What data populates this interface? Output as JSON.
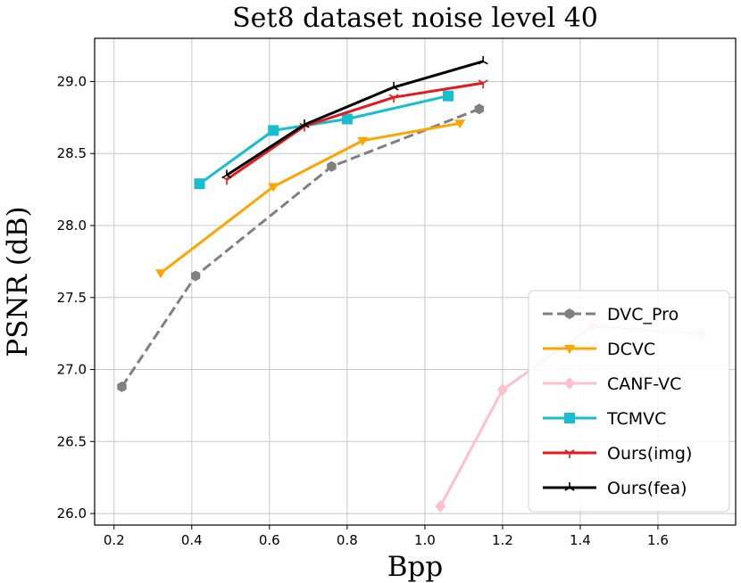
{
  "chart_data": {
    "type": "line",
    "title": "Set8 dataset noise level 40",
    "xlabel": "Bpp",
    "ylabel": "PSNR (dB)",
    "xlim": [
      0.15,
      1.8
    ],
    "ylim": [
      25.92,
      29.3
    ],
    "xticks": [
      "0.2",
      "0.4",
      "0.6",
      "0.8",
      "1.0",
      "1.2",
      "1.4",
      "1.6"
    ],
    "yticks": [
      "26.0",
      "26.5",
      "27.0",
      "27.5",
      "28.0",
      "28.5",
      "29.0"
    ],
    "grid": true,
    "legend_position": "lower-right",
    "series": [
      {
        "name": "DVC_Pro",
        "color": "#808080",
        "marker": "hexagon",
        "dashed": true,
        "x": [
          0.22,
          0.41,
          0.76,
          1.14
        ],
        "y": [
          26.88,
          27.65,
          28.41,
          28.81
        ]
      },
      {
        "name": "DCVC",
        "color": "#ffa500",
        "marker": "triangle-down",
        "dashed": false,
        "x": [
          0.32,
          0.61,
          0.84,
          1.09
        ],
        "y": [
          27.67,
          28.27,
          28.59,
          28.71
        ]
      },
      {
        "name": "CANF-VC",
        "color": "#ffc0cb",
        "marker": "diamond",
        "dashed": false,
        "x": [
          1.04,
          1.2,
          1.43,
          1.71
        ],
        "y": [
          26.05,
          26.86,
          27.3,
          27.25
        ]
      },
      {
        "name": "TCMVC",
        "color": "#17becf",
        "marker": "square",
        "dashed": false,
        "x": [
          0.42,
          0.61,
          0.8,
          1.06
        ],
        "y": [
          28.29,
          28.66,
          28.74,
          28.9
        ]
      },
      {
        "name": "Ours(img)",
        "color": "#e31a1c",
        "marker": "tri-down",
        "dashed": false,
        "x": [
          0.49,
          0.69,
          0.92,
          1.15
        ],
        "y": [
          28.32,
          28.69,
          28.89,
          28.99
        ]
      },
      {
        "name": "Ours(fea)",
        "color": "#000000",
        "marker": "tri-up",
        "dashed": false,
        "x": [
          0.49,
          0.69,
          0.92,
          1.15
        ],
        "y": [
          28.35,
          28.7,
          28.96,
          29.14
        ]
      }
    ]
  }
}
